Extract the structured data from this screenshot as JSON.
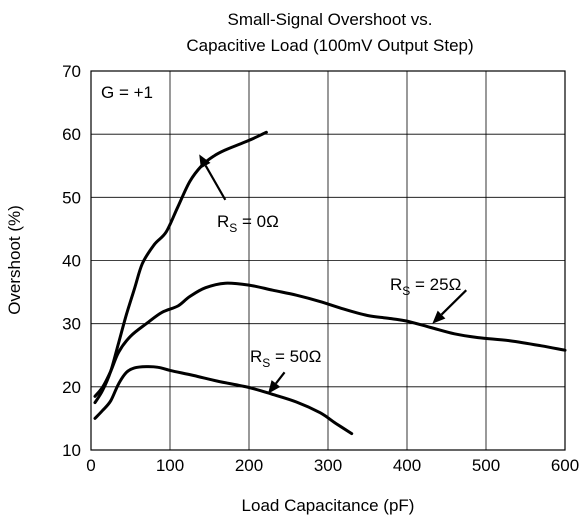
{
  "chart_data": {
    "type": "line",
    "title": [
      "Small-Signal Overshoot vs.",
      "Capacitive Load (100mV Output Step)"
    ],
    "xlabel": "Load Capacitance (pF)",
    "ylabel": "Overshoot (%)",
    "xlim": [
      0,
      600
    ],
    "ylim": [
      10,
      70
    ],
    "xticks": [
      0,
      100,
      200,
      300,
      400,
      500,
      600
    ],
    "yticks": [
      10,
      20,
      30,
      40,
      50,
      60,
      70
    ],
    "grid": true,
    "gain_label": "G = +1",
    "series": [
      {
        "name_main": "R",
        "name_sub": "S",
        "name_rest": " = 0Ω",
        "x": [
          5,
          15,
          25,
          35,
          45,
          55,
          65,
          80,
          95,
          110,
          125,
          140,
          155,
          170,
          190,
          205,
          222
        ],
        "y": [
          17.5,
          19.5,
          22.5,
          27.0,
          31.5,
          35.5,
          39.5,
          42.5,
          44.5,
          48.5,
          52.5,
          55.0,
          56.5,
          57.5,
          58.5,
          59.3,
          60.3
        ]
      },
      {
        "name_main": "R",
        "name_sub": "S",
        "name_rest": " = 25Ω",
        "x": [
          5,
          15,
          25,
          35,
          50,
          70,
          90,
          110,
          125,
          145,
          170,
          200,
          230,
          260,
          290,
          320,
          350,
          380,
          400,
          430,
          460,
          490,
          530,
          570,
          600
        ],
        "y": [
          18.5,
          20.0,
          22.5,
          25.5,
          28.0,
          30.0,
          31.8,
          32.8,
          34.3,
          35.7,
          36.4,
          36.1,
          35.3,
          34.5,
          33.5,
          32.3,
          31.3,
          30.8,
          30.4,
          29.4,
          28.4,
          27.8,
          27.3,
          26.5,
          25.8
        ]
      },
      {
        "name_main": "R",
        "name_sub": "S",
        "name_rest": " = 50Ω",
        "x": [
          5,
          15,
          25,
          35,
          45,
          55,
          70,
          85,
          100,
          130,
          160,
          200,
          230,
          260,
          290,
          310,
          330
        ],
        "y": [
          15.0,
          16.3,
          17.8,
          20.5,
          22.3,
          23.0,
          23.2,
          23.1,
          22.6,
          21.8,
          20.9,
          19.9,
          18.8,
          17.6,
          15.9,
          14.2,
          12.6
        ]
      }
    ],
    "annotations": [
      {
        "series": 0,
        "text_main": "R",
        "text_sub": "S",
        "text_rest": " = 0Ω",
        "arrow_from": [
          170,
          49.6
        ],
        "arrow_to": [
          137,
          56.8
        ]
      },
      {
        "series": 1,
        "text_main": "R",
        "text_sub": "S",
        "text_rest": " = 25Ω",
        "arrow_from": [
          475,
          35.3
        ],
        "arrow_to": [
          432,
          30.0
        ]
      },
      {
        "series": 2,
        "text_main": "R",
        "text_sub": "S",
        "text_rest": " = 50Ω",
        "arrow_from": [
          245,
          22.3
        ],
        "arrow_to": [
          224,
          18.9
        ]
      }
    ]
  }
}
